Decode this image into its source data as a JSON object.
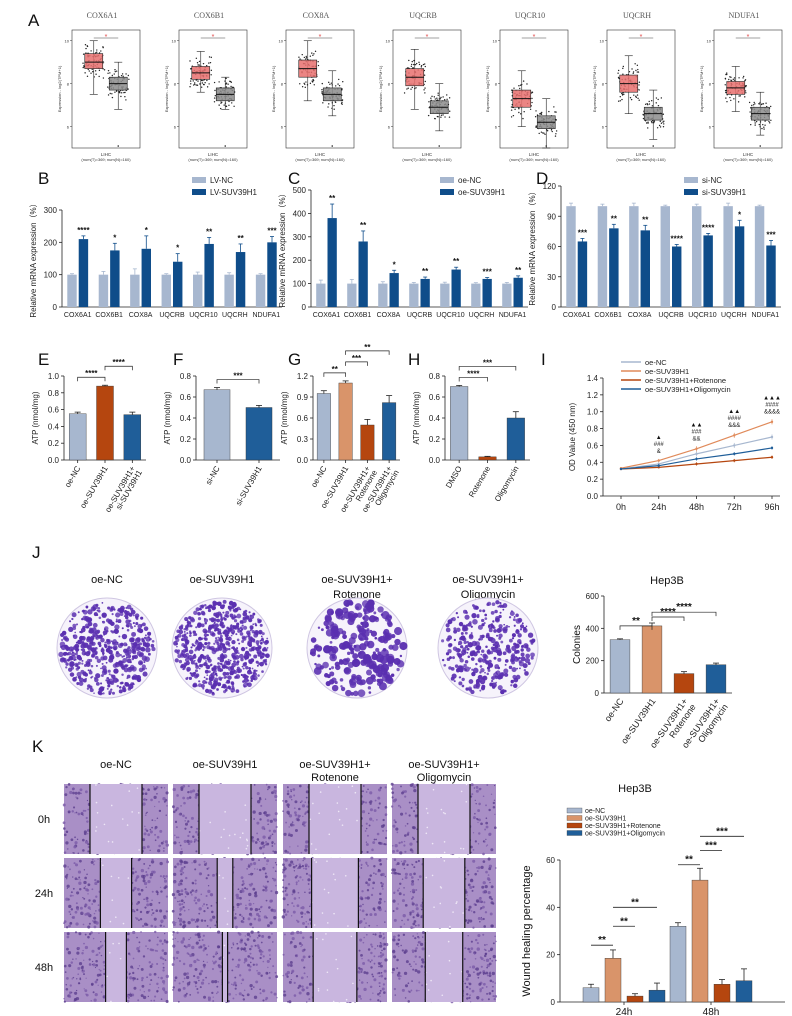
{
  "colors": {
    "tumor_box": "#e8706f",
    "normal_box": "#8c8c8c",
    "nc_bar": "#a7b7cf",
    "treat_bar": "#0f4d8a",
    "oe_bar": "#d9946a",
    "rotenone_bar": "#b5460f",
    "oligomycin_bar": "#1f5e99",
    "crystal_violet": "#5a2fb0"
  },
  "letters": [
    "A",
    "B",
    "C",
    "D",
    "E",
    "F",
    "G",
    "H",
    "I",
    "J",
    "K"
  ],
  "panelA": {
    "y_label": "Expression - log2(TPM+1)",
    "x_label": "LIHC",
    "x_sub": "(num(T)=369; num(N)=160)",
    "star": "*",
    "genes": [
      {
        "name": "COX6A1",
        "tumor": {
          "min": 7.5,
          "q1": 8.7,
          "med": 9.0,
          "q3": 9.4,
          "max": 10.0
        },
        "normal": {
          "min": 6.8,
          "q1": 7.7,
          "med": 8.0,
          "q3": 8.3,
          "max": 9.0
        }
      },
      {
        "name": "COX6B1",
        "tumor": {
          "min": 7.6,
          "q1": 8.2,
          "med": 8.5,
          "q3": 8.8,
          "max": 9.5
        },
        "normal": {
          "min": 6.8,
          "q1": 7.2,
          "med": 7.5,
          "q3": 7.8,
          "max": 8.3
        }
      },
      {
        "name": "COX8A",
        "tumor": {
          "min": 7.2,
          "q1": 8.3,
          "med": 8.7,
          "q3": 9.1,
          "max": 10.0
        },
        "normal": {
          "min": 6.5,
          "q1": 7.2,
          "med": 7.5,
          "q3": 7.8,
          "max": 8.6
        }
      },
      {
        "name": "UQCRB",
        "tumor": {
          "min": 6.8,
          "q1": 7.9,
          "med": 8.3,
          "q3": 8.7,
          "max": 9.6
        },
        "normal": {
          "min": 5.8,
          "q1": 6.6,
          "med": 6.9,
          "q3": 7.2,
          "max": 8.0
        }
      },
      {
        "name": "UQCR10",
        "tumor": {
          "min": 6.0,
          "q1": 6.9,
          "med": 7.3,
          "q3": 7.7,
          "max": 8.6
        },
        "normal": {
          "min": 5.0,
          "q1": 5.9,
          "med": 6.2,
          "q3": 6.5,
          "max": 7.3
        }
      },
      {
        "name": "UQCRH",
        "tumor": {
          "min": 6.6,
          "q1": 7.6,
          "med": 8.0,
          "q3": 8.4,
          "max": 9.3
        },
        "normal": {
          "min": 5.4,
          "q1": 6.3,
          "med": 6.6,
          "q3": 6.9,
          "max": 7.7
        }
      },
      {
        "name": "NDUFA1",
        "tumor": {
          "min": 6.7,
          "q1": 7.5,
          "med": 7.8,
          "q3": 8.1,
          "max": 8.8
        },
        "normal": {
          "min": 5.6,
          "q1": 6.3,
          "med": 6.6,
          "q3": 6.9,
          "max": 7.6
        }
      }
    ]
  },
  "chart_data": [
    {
      "id": "B",
      "type": "bar",
      "ylabel": "Relative mRNA expression（%）",
      "ylim": [
        0,
        300
      ],
      "yticks": [
        0,
        100,
        200,
        300
      ],
      "categories": [
        "COX6A1",
        "COX6B1",
        "COX8A",
        "UQCRB",
        "UQCR10",
        "UQCRH",
        "NDUFA1"
      ],
      "series": [
        {
          "name": "LV-NC",
          "values": [
            100,
            100,
            100,
            100,
            100,
            100,
            100
          ],
          "err": [
            3,
            10,
            18,
            3,
            8,
            6,
            3
          ]
        },
        {
          "name": "LV-SUV39H1",
          "values": [
            210,
            175,
            180,
            140,
            195,
            170,
            200
          ],
          "err": [
            10,
            22,
            40,
            25,
            20,
            25,
            18
          ]
        }
      ],
      "sig": [
        "****",
        "*",
        "*",
        "*",
        "**",
        "**",
        "***"
      ]
    },
    {
      "id": "C",
      "type": "bar",
      "ylabel": "Relative mRNA expression（%）",
      "ylim": [
        0,
        500
      ],
      "yticks": [
        0,
        100,
        200,
        300,
        400,
        500
      ],
      "categories": [
        "COX6A1",
        "COX6B1",
        "COX8A",
        "UQCRB",
        "UQCR10",
        "UQCRH",
        "NDUFA1"
      ],
      "series": [
        {
          "name": "oe-NC",
          "values": [
            100,
            100,
            100,
            100,
            100,
            100,
            100
          ],
          "err": [
            15,
            18,
            8,
            5,
            6,
            4,
            5
          ]
        },
        {
          "name": "oe-SUV39H1",
          "values": [
            380,
            280,
            145,
            120,
            160,
            120,
            125
          ],
          "err": [
            60,
            45,
            12,
            8,
            10,
            6,
            8
          ]
        }
      ],
      "sig": [
        "**",
        "**",
        "*",
        "**",
        "**",
        "***",
        "**"
      ]
    },
    {
      "id": "D",
      "type": "bar",
      "ylabel": "Relative mRNA expression（%）",
      "ylim": [
        0,
        120
      ],
      "yticks": [
        0,
        30,
        60,
        90,
        120
      ],
      "categories": [
        "COX6A1",
        "COX6B1",
        "COX8A",
        "UQCRB",
        "UQCR10",
        "UQCRH",
        "NDUFA1"
      ],
      "series": [
        {
          "name": "si-NC",
          "values": [
            100,
            100,
            100,
            100,
            100,
            100,
            100
          ],
          "err": [
            3,
            2,
            3,
            1,
            2,
            3,
            1
          ]
        },
        {
          "name": "si-SUV39H1",
          "values": [
            65,
            78,
            76,
            60,
            71,
            80,
            61
          ],
          "err": [
            3,
            4,
            5,
            2,
            2,
            6,
            5
          ]
        }
      ],
      "sig": [
        "***",
        "**",
        "**",
        "****",
        "****",
        "*",
        "***"
      ]
    },
    {
      "id": "E",
      "type": "bar",
      "ylabel": "ATP (nmol/mg)",
      "ylim": [
        0,
        1.0
      ],
      "yticks": [
        "0.0",
        "0.2",
        "0.4",
        "0.6",
        "0.8",
        "1.0"
      ],
      "categories": [
        "oe-NC",
        "oe-SUV39H1",
        "oe-SUV39H1+ si-SUV39H1"
      ],
      "values": [
        0.55,
        0.88,
        0.54
      ],
      "err": [
        0.02,
        0.01,
        0.03
      ],
      "colors": [
        "#a7b7cf",
        "#b5460f",
        "#1f5e99"
      ],
      "sig": [
        {
          "from": 0,
          "to": 1,
          "label": "****"
        },
        {
          "from": 1,
          "to": 2,
          "label": "****"
        }
      ]
    },
    {
      "id": "F",
      "type": "bar",
      "ylabel": "ATP (nmol/mg)",
      "ylim": [
        0,
        0.8
      ],
      "yticks": [
        "0.0",
        "0.2",
        "0.4",
        "0.6",
        "0.8"
      ],
      "categories": [
        "si-NC",
        "si-SUV39H1"
      ],
      "values": [
        0.67,
        0.5
      ],
      "err": [
        0.02,
        0.02
      ],
      "colors": [
        "#a7b7cf",
        "#1f5e99"
      ],
      "sig": [
        {
          "from": 0,
          "to": 1,
          "label": "***"
        }
      ]
    },
    {
      "id": "G",
      "type": "bar",
      "ylabel": "ATP (nmol/mg)",
      "ylim": [
        0,
        1.2
      ],
      "yticks": [
        "0.0",
        "0.3",
        "0.6",
        "0.9",
        "1.2"
      ],
      "categories": [
        "oe-NC",
        "oe-SUV39H1",
        "oe-SUV39H1+ Rotenone",
        "oe-SUV39H1+ Oligomycin"
      ],
      "values": [
        0.95,
        1.1,
        0.5,
        0.82
      ],
      "err": [
        0.04,
        0.03,
        0.08,
        0.1
      ],
      "colors": [
        "#a7b7cf",
        "#d9946a",
        "#b5460f",
        "#1f5e99"
      ],
      "sig": [
        {
          "from": 0,
          "to": 1,
          "label": "**"
        },
        {
          "from": 1,
          "to": 2,
          "label": "***"
        },
        {
          "from": 1,
          "to": 3,
          "label": "**"
        }
      ]
    },
    {
      "id": "H",
      "type": "bar",
      "ylabel": "ATP (nmol/mg)",
      "ylim": [
        0,
        0.8
      ],
      "yticks": [
        "0.0",
        "0.2",
        "0.4",
        "0.6",
        "0.8"
      ],
      "categories": [
        "DMSO",
        "Rotenone",
        "Oligomycin"
      ],
      "values": [
        0.7,
        0.03,
        0.4
      ],
      "err": [
        0.01,
        0.005,
        0.06
      ],
      "colors": [
        "#a7b7cf",
        "#b5460f",
        "#1f5e99"
      ],
      "sig": [
        {
          "from": 0,
          "to": 1,
          "label": "****"
        },
        {
          "from": 0,
          "to": 2,
          "label": "***"
        }
      ]
    },
    {
      "id": "I",
      "type": "line",
      "ylabel": "OD Value (450 nm)",
      "ylim": [
        0,
        1.4
      ],
      "yticks": [
        "0.0",
        "0.2",
        "0.4",
        "0.6",
        "0.8",
        "1.0",
        "1.2",
        "1.4"
      ],
      "x": [
        "0h",
        "24h",
        "48h",
        "72h",
        "96h"
      ],
      "series": [
        {
          "name": "oe-NC",
          "color": "#a7b7cf",
          "values": [
            0.32,
            0.38,
            0.5,
            0.6,
            0.7
          ],
          "err": [
            0.01,
            0.02,
            0.03,
            0.03,
            0.03
          ]
        },
        {
          "name": "oe-SUV39H1",
          "color": "#e08a5a",
          "values": [
            0.33,
            0.42,
            0.56,
            0.72,
            0.88
          ],
          "err": [
            0.01,
            0.02,
            0.03,
            0.03,
            0.03
          ]
        },
        {
          "name": "oe-SUV39H1+Rotenone",
          "color": "#b5460f",
          "values": [
            0.32,
            0.34,
            0.38,
            0.42,
            0.46
          ],
          "err": [
            0.01,
            0.01,
            0.02,
            0.02,
            0.02
          ]
        },
        {
          "name": "oe-SUV39H1+Oligomycin",
          "color": "#1f5e99",
          "values": [
            0.32,
            0.36,
            0.44,
            0.5,
            0.57
          ],
          "err": [
            0.01,
            0.02,
            0.02,
            0.02,
            0.02
          ]
        }
      ],
      "annotations": [
        {
          "x": "24h",
          "lines": [
            "▲",
            "###",
            "&"
          ]
        },
        {
          "x": "48h",
          "lines": [
            "▲▲",
            "###",
            "&&"
          ]
        },
        {
          "x": "72h",
          "lines": [
            "▲▲",
            "####",
            "&&&"
          ]
        },
        {
          "x": "96h",
          "lines": [
            "▲▲▲",
            "####",
            "&&&&"
          ]
        }
      ]
    },
    {
      "id": "J",
      "type": "bar",
      "title": "Hep3B",
      "ylabel": "Colonies",
      "ylim": [
        0,
        600
      ],
      "yticks": [
        0,
        200,
        400,
        600
      ],
      "categories": [
        "oe-NC",
        "oe-SUV39H1",
        "oe-SUV39H1+ Rotenone",
        "oe-SUV39H1+ Oligomycin"
      ],
      "values": [
        330,
        415,
        120,
        175
      ],
      "err": [
        5,
        18,
        12,
        10
      ],
      "colors": [
        "#a7b7cf",
        "#d9946a",
        "#b5460f",
        "#1f5e99"
      ],
      "sig": [
        {
          "from": 0,
          "to": 1,
          "label": "**"
        },
        {
          "from": 1,
          "to": 2,
          "label": "****"
        },
        {
          "from": 1,
          "to": 3,
          "label": "****"
        }
      ]
    },
    {
      "id": "K",
      "type": "bar",
      "title": "Hep3B",
      "ylabel": "Wound healing percentage",
      "ylim": [
        0,
        60
      ],
      "yticks": [
        0,
        20,
        40,
        60
      ],
      "categories": [
        "24h",
        "48h"
      ],
      "series": [
        {
          "name": "oe-NC",
          "color": "#a7b7cf",
          "values": [
            6,
            32
          ],
          "err": [
            1.5,
            1.5
          ]
        },
        {
          "name": "oe-SUV39H1",
          "color": "#d9946a",
          "values": [
            18.5,
            51.5
          ],
          "err": [
            3.5,
            5
          ]
        },
        {
          "name": "oe-SUV39H1+Rotenone",
          "color": "#b5460f",
          "values": [
            2.5,
            7.5
          ],
          "err": [
            1,
            2
          ]
        },
        {
          "name": "oe-SUV39H1+Oligomycin",
          "color": "#1f5e99",
          "values": [
            5,
            9
          ],
          "err": [
            3,
            5
          ]
        }
      ],
      "sig": [
        {
          "group": 0,
          "from": 0,
          "to": 1,
          "label": "**"
        },
        {
          "group": 0,
          "from": 1,
          "to": 2,
          "label": "**"
        },
        {
          "group": 0,
          "from": 1,
          "to": 3,
          "label": "**"
        },
        {
          "group": 1,
          "from": 0,
          "to": 1,
          "label": "**"
        },
        {
          "group": 1,
          "from": 1,
          "to": 2,
          "label": "***"
        },
        {
          "group": 1,
          "from": 1,
          "to": 3,
          "label": "***"
        }
      ]
    }
  ],
  "panelJ_images": {
    "labels": [
      "oe-NC",
      "oe-SUV39H1",
      "oe-SUV39H1+",
      "oe-SUV39H1+"
    ],
    "labels2": [
      "",
      "",
      "Rotenone",
      "Oligomycin"
    ],
    "density": [
      0.55,
      0.8,
      0.18,
      0.35
    ]
  },
  "panelK_images": {
    "col_labels": [
      "oe-NC",
      "oe-SUV39H1",
      "oe-SUV39H1+",
      "oe-SUV39H1+"
    ],
    "col_labels2": [
      "",
      "",
      "Rotenone",
      "Oligomycin"
    ],
    "row_labels": [
      "0h",
      "24h",
      "48h"
    ],
    "gap_fraction": [
      [
        0.5,
        0.5,
        0.5,
        0.5
      ],
      [
        0.3,
        0.15,
        0.45,
        0.4
      ],
      [
        0.2,
        0.05,
        0.42,
        0.36
      ]
    ]
  }
}
